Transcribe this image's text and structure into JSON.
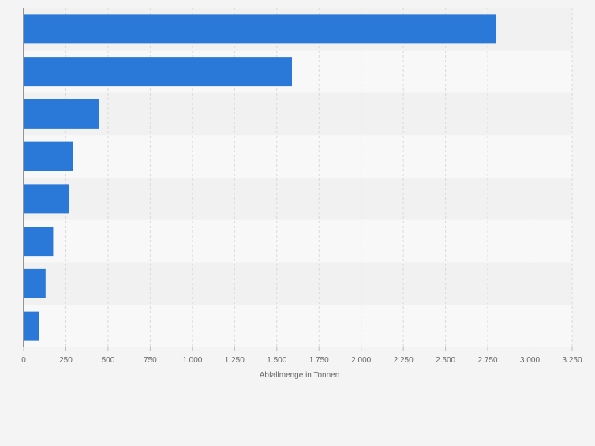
{
  "chart_data": {
    "type": "bar",
    "orientation": "horizontal",
    "title": "",
    "xlabel": "Abfallmenge in Tonnen",
    "ylabel": "",
    "categories": [
      "",
      "",
      "",
      "",
      "",
      "",
      "",
      ""
    ],
    "values": [
      2800,
      1590,
      445,
      290,
      270,
      175,
      130,
      90
    ],
    "xlim": [
      0,
      3250
    ],
    "x_ticks": [
      0,
      250,
      500,
      750,
      1000,
      1250,
      1500,
      1750,
      2000,
      2250,
      2500,
      2750,
      3000,
      3250
    ],
    "x_tick_labels": [
      "0",
      "250",
      "500",
      "750",
      "1.000",
      "1.250",
      "1.500",
      "1.750",
      "2.000",
      "2.250",
      "2.500",
      "2.750",
      "3.000",
      "3.250"
    ],
    "grid": true,
    "colors": {
      "bar": "#2a78d8",
      "band_dark": "#f1f1f1",
      "band_light": "#f8f8f8",
      "grid": "#d9d9d9",
      "axis": "#333333",
      "tick_text": "#666666"
    }
  }
}
